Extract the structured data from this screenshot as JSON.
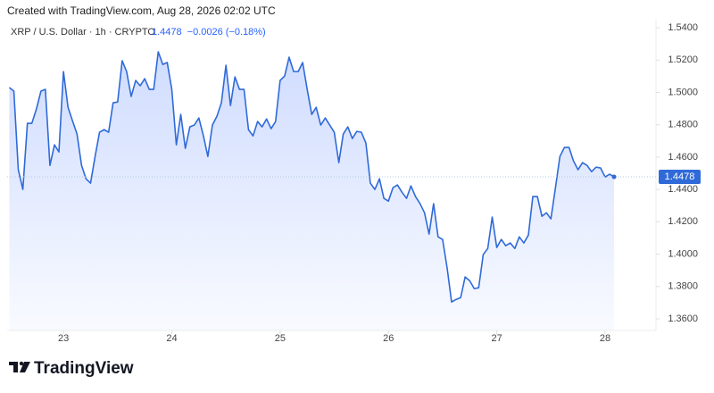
{
  "header": {
    "created": "Created with TradingView.com, Aug 28, 2026 02:02 UTC"
  },
  "footer": {
    "brand": "TradingView"
  },
  "chart_data": {
    "type": "area",
    "series": [
      {
        "name": "XRP / U.S. Dollar · 1h · CRYPTO",
        "color": "#2f6ad8",
        "values": [
          1.503,
          1.5008,
          1.4522,
          1.44,
          1.4809,
          1.4809,
          1.4897,
          1.5008,
          1.5019,
          1.4549,
          1.4676,
          1.4632,
          1.5129,
          1.4908,
          1.4825,
          1.4743,
          1.4549,
          1.4466,
          1.4439,
          1.4604,
          1.4754,
          1.477,
          1.4754,
          1.4936,
          1.4941,
          1.5196,
          1.5129,
          1.4975,
          1.5074,
          1.5041,
          1.5085,
          1.5019,
          1.5019,
          1.5251,
          1.5173,
          1.5185,
          1.5019,
          1.4676,
          1.4864,
          1.4654,
          1.4787,
          1.4798,
          1.4842,
          1.4731,
          1.4604,
          1.4798,
          1.4853,
          1.4936,
          1.5168,
          1.4919,
          1.5096,
          1.5019,
          1.5019,
          1.477,
          1.4731,
          1.482,
          1.4787,
          1.4836,
          1.4776,
          1.482,
          1.5074,
          1.5102,
          1.5218,
          1.5129,
          1.5129,
          1.5185,
          1.5019,
          1.4864,
          1.4908,
          1.4798,
          1.4842,
          1.4798,
          1.4754,
          1.4566,
          1.4743,
          1.4787,
          1.4715,
          1.4759,
          1.4754,
          1.4687,
          1.4439,
          1.44,
          1.4466,
          1.4345,
          1.4328,
          1.4411,
          1.4428,
          1.4383,
          1.4345,
          1.4422,
          1.4356,
          1.4312,
          1.4256,
          1.4124,
          1.4312,
          1.4107,
          1.4091,
          1.3914,
          1.3704,
          1.372,
          1.3731,
          1.3859,
          1.3836,
          1.3787,
          1.3792,
          1.3997,
          1.4035,
          1.4229,
          1.4041,
          1.4091,
          1.4052,
          1.4069,
          1.4035,
          1.4107,
          1.4069,
          1.4118,
          1.4356,
          1.4356,
          1.4234,
          1.4256,
          1.4218,
          1.4411,
          1.4604,
          1.466,
          1.466,
          1.4577,
          1.4522,
          1.4566,
          1.4549,
          1.451,
          1.4538,
          1.4533,
          1.4477,
          1.4494,
          1.4478
        ]
      }
    ],
    "x": [
      22.5,
      22.542,
      22.583,
      22.625,
      22.667,
      22.708,
      22.75,
      22.792,
      22.833,
      22.875,
      22.917,
      22.958,
      23,
      23.042,
      23.083,
      23.125,
      23.167,
      23.208,
      23.25,
      23.292,
      23.333,
      23.375,
      23.417,
      23.458,
      23.5,
      23.542,
      23.583,
      23.625,
      23.667,
      23.708,
      23.75,
      23.792,
      23.833,
      23.875,
      23.917,
      23.958,
      24,
      24.042,
      24.083,
      24.125,
      24.167,
      24.208,
      24.25,
      24.292,
      24.333,
      24.375,
      24.417,
      24.458,
      24.5,
      24.542,
      24.583,
      24.625,
      24.667,
      24.708,
      24.75,
      24.792,
      24.833,
      24.875,
      24.917,
      24.958,
      25,
      25.042,
      25.083,
      25.125,
      25.167,
      25.208,
      25.25,
      25.292,
      25.333,
      25.375,
      25.417,
      25.458,
      25.5,
      25.542,
      25.583,
      25.625,
      25.667,
      25.708,
      25.75,
      25.792,
      25.833,
      25.875,
      25.917,
      25.958,
      26,
      26.042,
      26.083,
      26.125,
      26.167,
      26.208,
      26.25,
      26.292,
      26.333,
      26.375,
      26.417,
      26.458,
      26.5,
      26.542,
      26.583,
      26.625,
      26.667,
      26.708,
      26.75,
      26.792,
      26.833,
      26.875,
      26.917,
      26.958,
      27,
      27.042,
      27.083,
      27.125,
      27.167,
      27.208,
      27.25,
      27.292,
      27.333,
      27.375,
      27.417,
      27.458,
      27.5,
      27.542,
      27.583,
      27.625,
      27.667,
      27.708,
      27.75,
      27.792,
      27.833,
      27.875,
      27.917,
      27.958,
      28,
      28.042,
      28.083
    ],
    "change_label": "−0.0026 (−0.18%)",
    "xlim": [
      22.48,
      28.47
    ],
    "xticks": [
      23,
      24,
      25,
      26,
      27,
      28
    ],
    "ylim": [
      1.3528,
      1.545
    ],
    "yticks": [
      {
        "value": 1.36,
        "label": "1.3600"
      },
      {
        "value": 1.38,
        "label": "1.3800"
      },
      {
        "value": 1.4,
        "label": "1.4000"
      },
      {
        "value": 1.42,
        "label": "1.4200"
      },
      {
        "value": 1.44,
        "label": "1.4400"
      },
      {
        "value": 1.46,
        "label": "1.4600"
      },
      {
        "value": 1.48,
        "label": "1.4800"
      },
      {
        "value": 1.5,
        "label": "1.5000"
      },
      {
        "value": 1.52,
        "label": "1.5200"
      },
      {
        "value": 1.54,
        "label": "1.5400"
      }
    ]
  }
}
